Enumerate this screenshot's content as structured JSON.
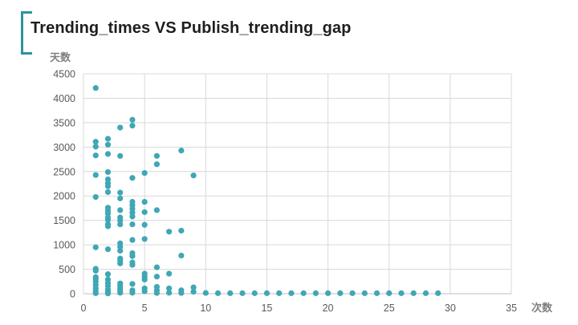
{
  "title": "Trending_times VS Publish_trending_gap",
  "chart_data": {
    "type": "scatter",
    "title": "Trending_times VS Publish_trending_gap",
    "xlabel": "次数",
    "ylabel": "天数",
    "xlim": [
      0,
      35
    ],
    "ylim": [
      0,
      4500
    ],
    "xticks": [
      0,
      5,
      10,
      15,
      20,
      25,
      30,
      35
    ],
    "yticks": [
      0,
      500,
      1000,
      1500,
      2000,
      2500,
      3000,
      3500,
      4000,
      4500
    ],
    "grid": true,
    "point_color": "#3fa7b5",
    "series": [
      {
        "points": [
          [
            1,
            4210
          ],
          [
            1,
            3110
          ],
          [
            1,
            3010
          ],
          [
            1,
            2830
          ],
          [
            1,
            2430
          ],
          [
            1,
            1980
          ],
          [
            1,
            950
          ],
          [
            1,
            510
          ],
          [
            1,
            470
          ],
          [
            1,
            340
          ],
          [
            1,
            300
          ],
          [
            1,
            250
          ],
          [
            1,
            180
          ],
          [
            1,
            110
          ],
          [
            1,
            50
          ],
          [
            1,
            10
          ],
          [
            2,
            3170
          ],
          [
            2,
            3050
          ],
          [
            2,
            2860
          ],
          [
            2,
            2490
          ],
          [
            2,
            2340
          ],
          [
            2,
            2260
          ],
          [
            2,
            2200
          ],
          [
            2,
            2080
          ],
          [
            2,
            1760
          ],
          [
            2,
            1700
          ],
          [
            2,
            1640
          ],
          [
            2,
            1560
          ],
          [
            2,
            1510
          ],
          [
            2,
            1420
          ],
          [
            2,
            1380
          ],
          [
            2,
            910
          ],
          [
            2,
            400
          ],
          [
            2,
            290
          ],
          [
            2,
            220
          ],
          [
            2,
            160
          ],
          [
            2,
            90
          ],
          [
            2,
            40
          ],
          [
            2,
            5
          ],
          [
            3,
            3400
          ],
          [
            3,
            2820
          ],
          [
            3,
            2070
          ],
          [
            3,
            1950
          ],
          [
            3,
            1710
          ],
          [
            3,
            1560
          ],
          [
            3,
            1500
          ],
          [
            3,
            1420
          ],
          [
            3,
            1030
          ],
          [
            3,
            960
          ],
          [
            3,
            880
          ],
          [
            3,
            720
          ],
          [
            3,
            680
          ],
          [
            3,
            620
          ],
          [
            3,
            210
          ],
          [
            3,
            160
          ],
          [
            3,
            110
          ],
          [
            3,
            60
          ],
          [
            3,
            20
          ],
          [
            4,
            3560
          ],
          [
            4,
            3440
          ],
          [
            4,
            2370
          ],
          [
            4,
            1880
          ],
          [
            4,
            1810
          ],
          [
            4,
            1740
          ],
          [
            4,
            1660
          ],
          [
            4,
            1580
          ],
          [
            4,
            1420
          ],
          [
            4,
            1100
          ],
          [
            4,
            830
          ],
          [
            4,
            770
          ],
          [
            4,
            640
          ],
          [
            4,
            590
          ],
          [
            4,
            200
          ],
          [
            4,
            70
          ],
          [
            4,
            20
          ],
          [
            5,
            2470
          ],
          [
            5,
            1880
          ],
          [
            5,
            1670
          ],
          [
            5,
            1410
          ],
          [
            5,
            1120
          ],
          [
            5,
            410
          ],
          [
            5,
            350
          ],
          [
            5,
            290
          ],
          [
            5,
            110
          ],
          [
            5,
            50
          ],
          [
            6,
            2820
          ],
          [
            6,
            2650
          ],
          [
            6,
            1710
          ],
          [
            6,
            540
          ],
          [
            6,
            350
          ],
          [
            6,
            140
          ],
          [
            6,
            70
          ],
          [
            6,
            15
          ],
          [
            7,
            1270
          ],
          [
            7,
            410
          ],
          [
            7,
            110
          ],
          [
            7,
            20
          ],
          [
            8,
            2930
          ],
          [
            8,
            1290
          ],
          [
            8,
            780
          ],
          [
            8,
            70
          ],
          [
            8,
            15
          ],
          [
            9,
            2420
          ],
          [
            9,
            130
          ],
          [
            9,
            40
          ],
          [
            10,
            15
          ],
          [
            11,
            10
          ],
          [
            12,
            10
          ],
          [
            13,
            10
          ],
          [
            14,
            10
          ],
          [
            15,
            10
          ],
          [
            16,
            10
          ],
          [
            17,
            10
          ],
          [
            18,
            10
          ],
          [
            19,
            10
          ],
          [
            20,
            10
          ],
          [
            21,
            10
          ],
          [
            22,
            10
          ],
          [
            23,
            10
          ],
          [
            24,
            10
          ],
          [
            25,
            10
          ],
          [
            26,
            10
          ],
          [
            27,
            10
          ],
          [
            28,
            10
          ],
          [
            29,
            10
          ]
        ]
      }
    ]
  }
}
